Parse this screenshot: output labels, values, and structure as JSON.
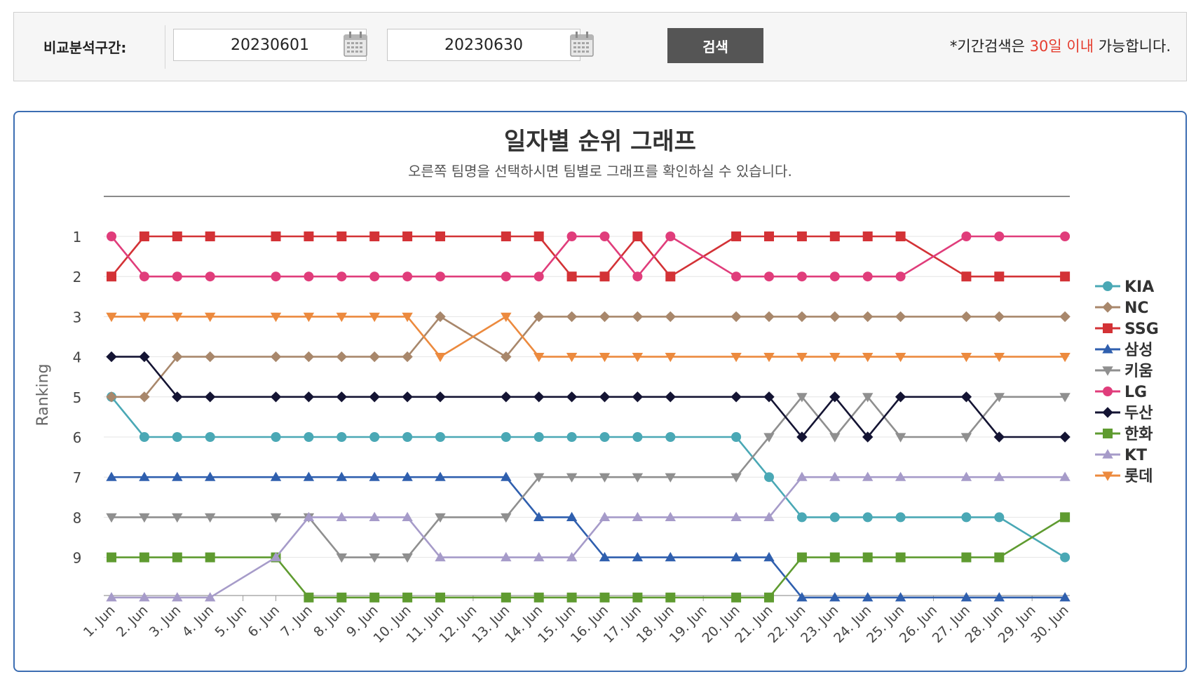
{
  "search": {
    "label": "비교분석구간:",
    "start_date": "20230601",
    "end_date": "20230630",
    "separator": "~",
    "button_label": "검색",
    "notice_prefix": "*기간검색은 ",
    "notice_highlight": "30일 이내",
    "notice_suffix": " 가능합니다."
  },
  "chart_data": {
    "type": "line",
    "title": "일자별 순위 그래프",
    "subtitle": "오른쪽 팀명을 선택하시면 팀별로 그래프를 확인하실 수 있습니다.",
    "ylabel": "Ranking",
    "xlabel": "",
    "y_inverted": true,
    "ylim": [
      1,
      10
    ],
    "y_ticks": [
      1,
      2,
      3,
      4,
      5,
      6,
      7,
      8,
      9
    ],
    "categories": [
      "1. Jun",
      "2. Jun",
      "3. Jun",
      "4. Jun",
      "5. Jun",
      "6. Jun",
      "7. Jun",
      "8. Jun",
      "9. Jun",
      "10. Jun",
      "11. Jun",
      "12. Jun",
      "13. Jun",
      "14. Jun",
      "15. Jun",
      "16. Jun",
      "17. Jun",
      "18. Jun",
      "19. Jun",
      "20. Jun",
      "21. Jun",
      "22. Jun",
      "23. Jun",
      "24. Jun",
      "25. Jun",
      "26. Jun",
      "27. Jun",
      "28. Jun",
      "29. Jun",
      "30. Jun"
    ],
    "legend_position": "right",
    "grid": "horizontal",
    "series": [
      {
        "name": "KIA",
        "color": "#4aa8b5",
        "marker": "circle",
        "values": [
          5,
          6,
          6,
          6,
          null,
          6,
          6,
          6,
          6,
          6,
          6,
          null,
          6,
          6,
          6,
          6,
          6,
          6,
          null,
          6,
          7,
          8,
          8,
          8,
          8,
          null,
          8,
          8,
          null,
          9
        ]
      },
      {
        "name": "NC",
        "color": "#a8876b",
        "marker": "diamond",
        "values": [
          5,
          5,
          4,
          4,
          null,
          4,
          4,
          4,
          4,
          4,
          3,
          null,
          4,
          3,
          3,
          3,
          3,
          3,
          null,
          3,
          3,
          3,
          3,
          3,
          3,
          null,
          3,
          3,
          null,
          3
        ]
      },
      {
        "name": "SSG",
        "color": "#d33236",
        "marker": "square",
        "values": [
          2,
          1,
          1,
          1,
          null,
          1,
          1,
          1,
          1,
          1,
          1,
          null,
          1,
          1,
          2,
          2,
          1,
          2,
          null,
          1,
          1,
          1,
          1,
          1,
          1,
          null,
          2,
          2,
          null,
          2
        ]
      },
      {
        "name": "삼성",
        "color": "#2f5fae",
        "marker": "triangle",
        "values": [
          7,
          7,
          7,
          7,
          null,
          7,
          7,
          7,
          7,
          7,
          7,
          null,
          7,
          8,
          8,
          9,
          9,
          9,
          null,
          9,
          9,
          10,
          10,
          10,
          10,
          null,
          10,
          10,
          null,
          10
        ]
      },
      {
        "name": "키움",
        "color": "#8f8f8f",
        "marker": "triangle-down",
        "values": [
          8,
          8,
          8,
          8,
          null,
          8,
          8,
          9,
          9,
          9,
          8,
          null,
          8,
          7,
          7,
          7,
          7,
          7,
          null,
          7,
          6,
          5,
          6,
          5,
          6,
          null,
          6,
          5,
          null,
          5
        ]
      },
      {
        "name": "LG",
        "color": "#e03d7b",
        "marker": "circle",
        "values": [
          1,
          2,
          2,
          2,
          null,
          2,
          2,
          2,
          2,
          2,
          2,
          null,
          2,
          2,
          1,
          1,
          2,
          1,
          null,
          2,
          2,
          2,
          2,
          2,
          2,
          null,
          1,
          1,
          null,
          1
        ]
      },
      {
        "name": "두산",
        "color": "#141433",
        "marker": "diamond",
        "values": [
          4,
          4,
          5,
          5,
          null,
          5,
          5,
          5,
          5,
          5,
          5,
          null,
          5,
          5,
          5,
          5,
          5,
          5,
          null,
          5,
          5,
          6,
          5,
          6,
          5,
          null,
          5,
          6,
          null,
          6
        ]
      },
      {
        "name": "한화",
        "color": "#5f9b30",
        "marker": "square",
        "values": [
          9,
          9,
          9,
          9,
          null,
          9,
          10,
          10,
          10,
          10,
          10,
          null,
          10,
          10,
          10,
          10,
          10,
          10,
          null,
          10,
          10,
          9,
          9,
          9,
          9,
          null,
          9,
          9,
          null,
          8
        ]
      },
      {
        "name": "KT",
        "color": "#a69bc9",
        "marker": "triangle",
        "values": [
          10,
          10,
          10,
          10,
          null,
          9,
          8,
          8,
          8,
          8,
          9,
          null,
          9,
          9,
          9,
          8,
          8,
          8,
          null,
          8,
          8,
          7,
          7,
          7,
          7,
          null,
          7,
          7,
          null,
          7
        ]
      },
      {
        "name": "롯데",
        "color": "#ec8a3e",
        "marker": "triangle-down",
        "values": [
          3,
          3,
          3,
          3,
          null,
          3,
          3,
          3,
          3,
          3,
          4,
          null,
          3,
          4,
          4,
          4,
          4,
          4,
          null,
          4,
          4,
          4,
          4,
          4,
          4,
          null,
          4,
          4,
          null,
          4
        ]
      }
    ]
  }
}
